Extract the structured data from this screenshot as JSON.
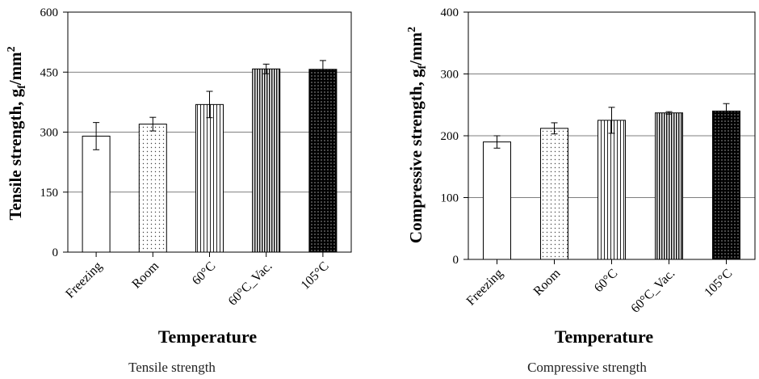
{
  "chart_data": [
    {
      "type": "bar",
      "title": "",
      "caption": "Tensile strength",
      "xlabel": "Temperature",
      "ylabel": {
        "main": "Tensile strength,  g",
        "sub": "f",
        "unit": "/mm",
        "sup": "2"
      },
      "ylim": [
        0,
        600
      ],
      "yticks": [
        0,
        150,
        300,
        450,
        600
      ],
      "grid": true,
      "categories": [
        "Freezing",
        "Room",
        "60°C",
        "60°C_Vac.",
        "105°C"
      ],
      "values": [
        290,
        320,
        369,
        458,
        457
      ],
      "errors": [
        34,
        17,
        33,
        12,
        22
      ],
      "patterns": [
        "none",
        "sparse-dots",
        "vertical-lines",
        "dense-vertical-lines",
        "black-dots"
      ]
    },
    {
      "type": "bar",
      "title": "",
      "caption": "Compressive strength",
      "xlabel": "Temperature",
      "ylabel": {
        "main": "Compressive  strength,  g",
        "sub": "f",
        "unit": "/mm",
        "sup": "2"
      },
      "ylim": [
        0,
        400
      ],
      "yticks": [
        0,
        100,
        200,
        300,
        400
      ],
      "grid": true,
      "categories": [
        "Freezing",
        "Room",
        "60°C",
        "60°C_Vac.",
        "105°C"
      ],
      "values": [
        190,
        212,
        225,
        237,
        240
      ],
      "errors": [
        10,
        9,
        21,
        2,
        12
      ],
      "patterns": [
        "none",
        "sparse-dots",
        "vertical-lines",
        "dense-vertical-lines",
        "black-dots"
      ]
    }
  ]
}
